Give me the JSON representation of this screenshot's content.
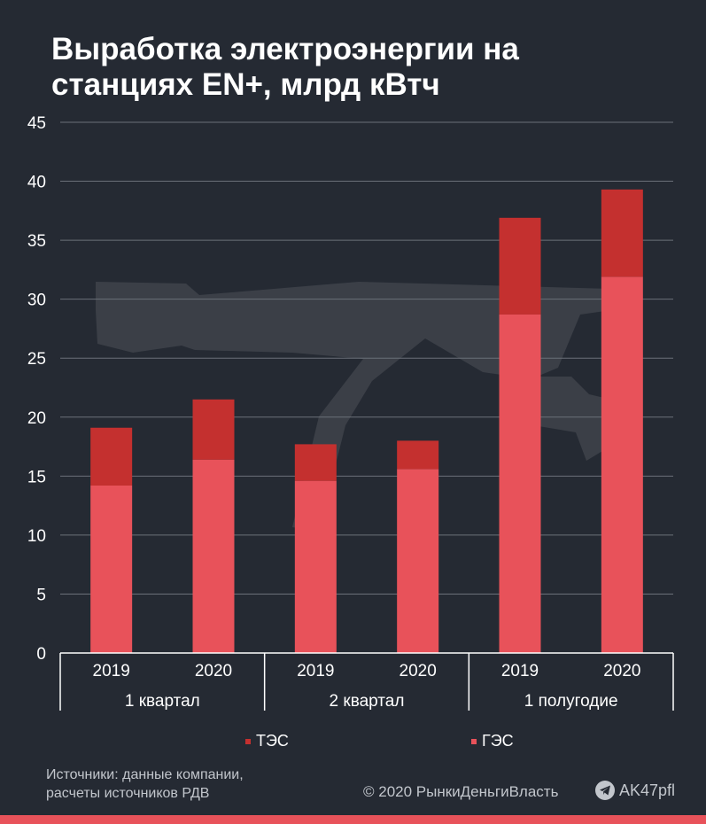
{
  "title_lines": [
    "Выработка электроэнергии на",
    "станциях EN+, млрд кВтч"
  ],
  "colors": {
    "background": "#252a33",
    "tes": "#c4302f",
    "ges": "#e8525a",
    "accent": "#e8525a"
  },
  "chart_data": {
    "type": "bar",
    "stacked": true,
    "title": "Выработка электроэнергии на станциях EN+, млрд кВтч",
    "categories": [
      "2019",
      "2020",
      "2019",
      "2020",
      "2019",
      "2020"
    ],
    "groups": [
      {
        "label": "1 квартал",
        "span": 2
      },
      {
        "label": "2 квартал",
        "span": 2
      },
      {
        "label": "1 полугодие",
        "span": 2
      }
    ],
    "series": [
      {
        "name": "ГЭС",
        "color": "#e8525a",
        "values": [
          14.2,
          16.4,
          14.6,
          15.6,
          28.7,
          31.9
        ]
      },
      {
        "name": "ТЭС",
        "color": "#c4302f",
        "values": [
          4.9,
          5.1,
          3.1,
          2.4,
          8.2,
          7.4
        ]
      }
    ],
    "yticks": [
      "0",
      "5",
      "10",
      "15",
      "20",
      "25",
      "30",
      "35",
      "40",
      "45"
    ],
    "ylim": [
      0,
      45
    ],
    "grid": true,
    "legend": [
      {
        "name": "ТЭС",
        "color": "#c4302f"
      },
      {
        "name": "ГЭС",
        "color": "#e8525a"
      }
    ],
    "legend_position": "bottom"
  },
  "footer": {
    "source_lines": [
      "Источники: данные компании,",
      "расчеты источников  РДВ"
    ],
    "copyright": "© 2020  РынкиДеньгиВласть",
    "channel": "AK47pfl",
    "channel_icon": "telegram-icon"
  }
}
